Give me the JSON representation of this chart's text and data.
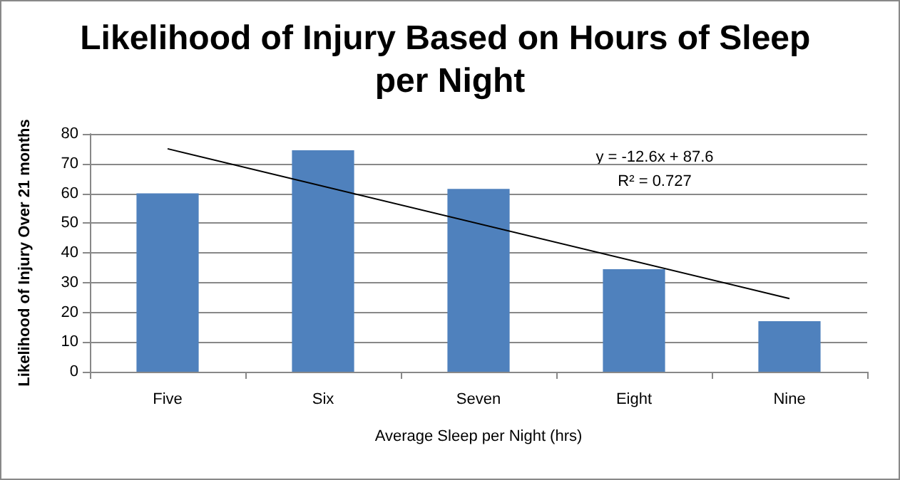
{
  "chart_data": {
    "type": "bar",
    "title": "Likelihood of Injury Based on Hours of Sleep per Night",
    "xlabel": "Average Sleep per Night (hrs)",
    "ylabel": "Likelihood of Injury Over 21 months",
    "categories": [
      "Five",
      "Six",
      "Seven",
      "Eight",
      "Nine"
    ],
    "series": [
      {
        "color": "#4f81bd",
        "values": [
          60,
          74.5,
          61.5,
          34.5,
          17
        ]
      },
      {
        "type": "line",
        "color": "#000000",
        "x": [
          "Five",
          "Nine"
        ],
        "values": [
          75,
          24.6
        ],
        "marker": "none",
        "line_style": "solid"
      }
    ],
    "annotations": [
      "y = -12.6x + 87.6",
      "R² = 0.727"
    ],
    "ylim": [
      0,
      80
    ],
    "yticks": [
      0,
      10,
      20,
      30,
      40,
      50,
      60,
      70,
      80
    ],
    "grid": "y"
  }
}
